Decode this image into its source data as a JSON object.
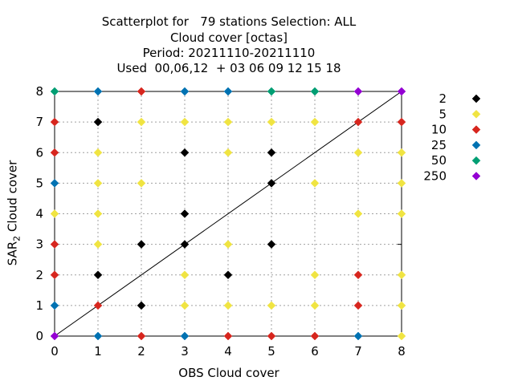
{
  "chart_data": {
    "type": "scatter",
    "title_lines": [
      "Scatterplot for   79 stations Selection: ALL",
      "Cloud cover [octas]",
      "Period: 20211110-20211110",
      "Used  00,06,12  + 03 06 09 12 15 18"
    ],
    "xlabel": "OBS Cloud cover",
    "ylabel_main": "SAR",
    "ylabel_sub": "2",
    "ylabel_rest": " Cloud cover",
    "xlim": [
      0,
      8
    ],
    "ylim": [
      0,
      8
    ],
    "xticks": [
      "0",
      "1",
      "2",
      "3",
      "4",
      "5",
      "6",
      "7",
      "8"
    ],
    "yticks": [
      "0",
      "1",
      "2",
      "3",
      "4",
      "5",
      "6",
      "7",
      "8"
    ],
    "grid": true,
    "legend_position": "right",
    "diagonal_line": true,
    "legend": [
      {
        "label": "2",
        "color": "#000000"
      },
      {
        "label": "5",
        "color": "#f0e442"
      },
      {
        "label": "10",
        "color": "#d7261e"
      },
      {
        "label": "25",
        "color": "#0072b2"
      },
      {
        "label": "50",
        "color": "#009e73"
      },
      {
        "label": "250",
        "color": "#9400d3"
      }
    ],
    "points": [
      {
        "x": 0,
        "y": 0,
        "c": "#9400d3"
      },
      {
        "x": 0,
        "y": 1,
        "c": "#0072b2"
      },
      {
        "x": 0,
        "y": 2,
        "c": "#d7261e"
      },
      {
        "x": 0,
        "y": 3,
        "c": "#d7261e"
      },
      {
        "x": 0,
        "y": 4,
        "c": "#f0e442"
      },
      {
        "x": 0,
        "y": 5,
        "c": "#0072b2"
      },
      {
        "x": 0,
        "y": 6,
        "c": "#d7261e"
      },
      {
        "x": 0,
        "y": 7,
        "c": "#d7261e"
      },
      {
        "x": 0,
        "y": 8,
        "c": "#009e73"
      },
      {
        "x": 1,
        "y": 0,
        "c": "#0072b2"
      },
      {
        "x": 1,
        "y": 1,
        "c": "#d7261e"
      },
      {
        "x": 1,
        "y": 2,
        "c": "#000000"
      },
      {
        "x": 1,
        "y": 3,
        "c": "#f0e442"
      },
      {
        "x": 1,
        "y": 4,
        "c": "#f0e442"
      },
      {
        "x": 1,
        "y": 5,
        "c": "#f0e442"
      },
      {
        "x": 1,
        "y": 6,
        "c": "#f0e442"
      },
      {
        "x": 1,
        "y": 7,
        "c": "#000000"
      },
      {
        "x": 1,
        "y": 8,
        "c": "#0072b2"
      },
      {
        "x": 2,
        "y": 0,
        "c": "#d7261e"
      },
      {
        "x": 2,
        "y": 1,
        "c": "#000000"
      },
      {
        "x": 2,
        "y": 3,
        "c": "#000000"
      },
      {
        "x": 2,
        "y": 5,
        "c": "#f0e442"
      },
      {
        "x": 2,
        "y": 7,
        "c": "#f0e442"
      },
      {
        "x": 2,
        "y": 8,
        "c": "#d7261e"
      },
      {
        "x": 3,
        "y": 0,
        "c": "#0072b2"
      },
      {
        "x": 3,
        "y": 1,
        "c": "#f0e442"
      },
      {
        "x": 3,
        "y": 2,
        "c": "#f0e442"
      },
      {
        "x": 3,
        "y": 3,
        "c": "#000000"
      },
      {
        "x": 3,
        "y": 4,
        "c": "#000000"
      },
      {
        "x": 3,
        "y": 6,
        "c": "#000000"
      },
      {
        "x": 3,
        "y": 7,
        "c": "#f0e442"
      },
      {
        "x": 3,
        "y": 8,
        "c": "#0072b2"
      },
      {
        "x": 4,
        "y": 0,
        "c": "#d7261e"
      },
      {
        "x": 4,
        "y": 1,
        "c": "#f0e442"
      },
      {
        "x": 4,
        "y": 2,
        "c": "#000000"
      },
      {
        "x": 4,
        "y": 3,
        "c": "#f0e442"
      },
      {
        "x": 4,
        "y": 6,
        "c": "#f0e442"
      },
      {
        "x": 4,
        "y": 7,
        "c": "#f0e442"
      },
      {
        "x": 4,
        "y": 8,
        "c": "#0072b2"
      },
      {
        "x": 5,
        "y": 0,
        "c": "#d7261e"
      },
      {
        "x": 5,
        "y": 1,
        "c": "#f0e442"
      },
      {
        "x": 5,
        "y": 3,
        "c": "#000000"
      },
      {
        "x": 5,
        "y": 5,
        "c": "#000000"
      },
      {
        "x": 5,
        "y": 6,
        "c": "#000000"
      },
      {
        "x": 5,
        "y": 7,
        "c": "#f0e442"
      },
      {
        "x": 5,
        "y": 8,
        "c": "#009e73"
      },
      {
        "x": 6,
        "y": 0,
        "c": "#d7261e"
      },
      {
        "x": 6,
        "y": 1,
        "c": "#f0e442"
      },
      {
        "x": 6,
        "y": 2,
        "c": "#f0e442"
      },
      {
        "x": 6,
        "y": 5,
        "c": "#f0e442"
      },
      {
        "x": 6,
        "y": 7,
        "c": "#f0e442"
      },
      {
        "x": 6,
        "y": 8,
        "c": "#009e73"
      },
      {
        "x": 7,
        "y": 0,
        "c": "#0072b2"
      },
      {
        "x": 7,
        "y": 1,
        "c": "#d7261e"
      },
      {
        "x": 7,
        "y": 2,
        "c": "#d7261e"
      },
      {
        "x": 7,
        "y": 4,
        "c": "#f0e442"
      },
      {
        "x": 7,
        "y": 6,
        "c": "#f0e442"
      },
      {
        "x": 7,
        "y": 7,
        "c": "#d7261e"
      },
      {
        "x": 7,
        "y": 8,
        "c": "#9400d3"
      },
      {
        "x": 8,
        "y": 0,
        "c": "#f0e442"
      },
      {
        "x": 8,
        "y": 1,
        "c": "#f0e442"
      },
      {
        "x": 8,
        "y": 2,
        "c": "#f0e442"
      },
      {
        "x": 8,
        "y": 4,
        "c": "#f0e442"
      },
      {
        "x": 8,
        "y": 5,
        "c": "#f0e442"
      },
      {
        "x": 8,
        "y": 6,
        "c": "#f0e442"
      },
      {
        "x": 8,
        "y": 7,
        "c": "#d7261e"
      },
      {
        "x": 8,
        "y": 8,
        "c": "#9400d3"
      }
    ]
  }
}
